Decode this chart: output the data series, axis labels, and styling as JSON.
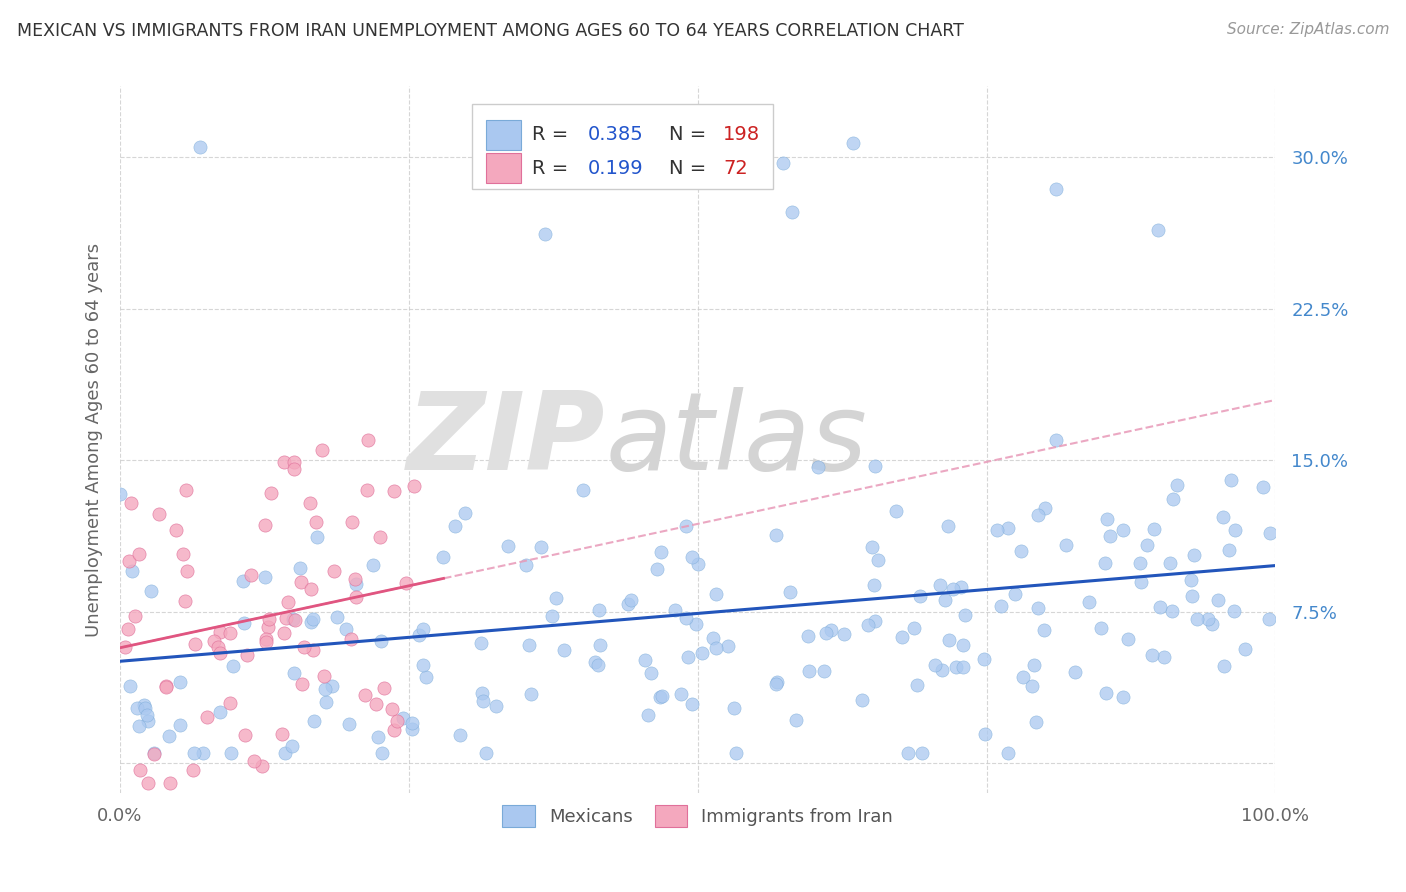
{
  "title": "MEXICAN VS IMMIGRANTS FROM IRAN UNEMPLOYMENT AMONG AGES 60 TO 64 YEARS CORRELATION CHART",
  "source": "Source: ZipAtlas.com",
  "ylabel": "Unemployment Among Ages 60 to 64 years",
  "xlim": [
    0,
    1
  ],
  "ylim": [
    -0.015,
    0.335
  ],
  "yticks": [
    0.0,
    0.075,
    0.15,
    0.225,
    0.3
  ],
  "ytick_labels": [
    "",
    "7.5%",
    "15.0%",
    "22.5%",
    "30.0%"
  ],
  "xticks": [
    0.0,
    0.25,
    0.5,
    0.75,
    1.0
  ],
  "xtick_labels": [
    "0.0%",
    "",
    "",
    "",
    "100.0%"
  ],
  "blue_R": 0.385,
  "blue_N": 198,
  "pink_R": 0.199,
  "pink_N": 72,
  "blue_color": "#aac8f0",
  "blue_edge_color": "#7aaad8",
  "pink_color": "#f4a8be",
  "pink_edge_color": "#e0709a",
  "blue_line_color": "#2255bb",
  "pink_solid_color": "#e05580",
  "pink_dash_color": "#e899b8",
  "legend_blue_label": "Mexicans",
  "legend_pink_label": "Immigrants from Iran",
  "legend_r_color": "#2255cc",
  "legend_n_color": "#cc2222",
  "watermark": "ZIPatlas",
  "watermark_zip_color": "#d8d8d8",
  "watermark_atlas_color": "#c8c8c8",
  "background_color": "#ffffff",
  "grid_color": "#cccccc",
  "ytick_color": "#4488cc",
  "xtick_color": "#666666"
}
